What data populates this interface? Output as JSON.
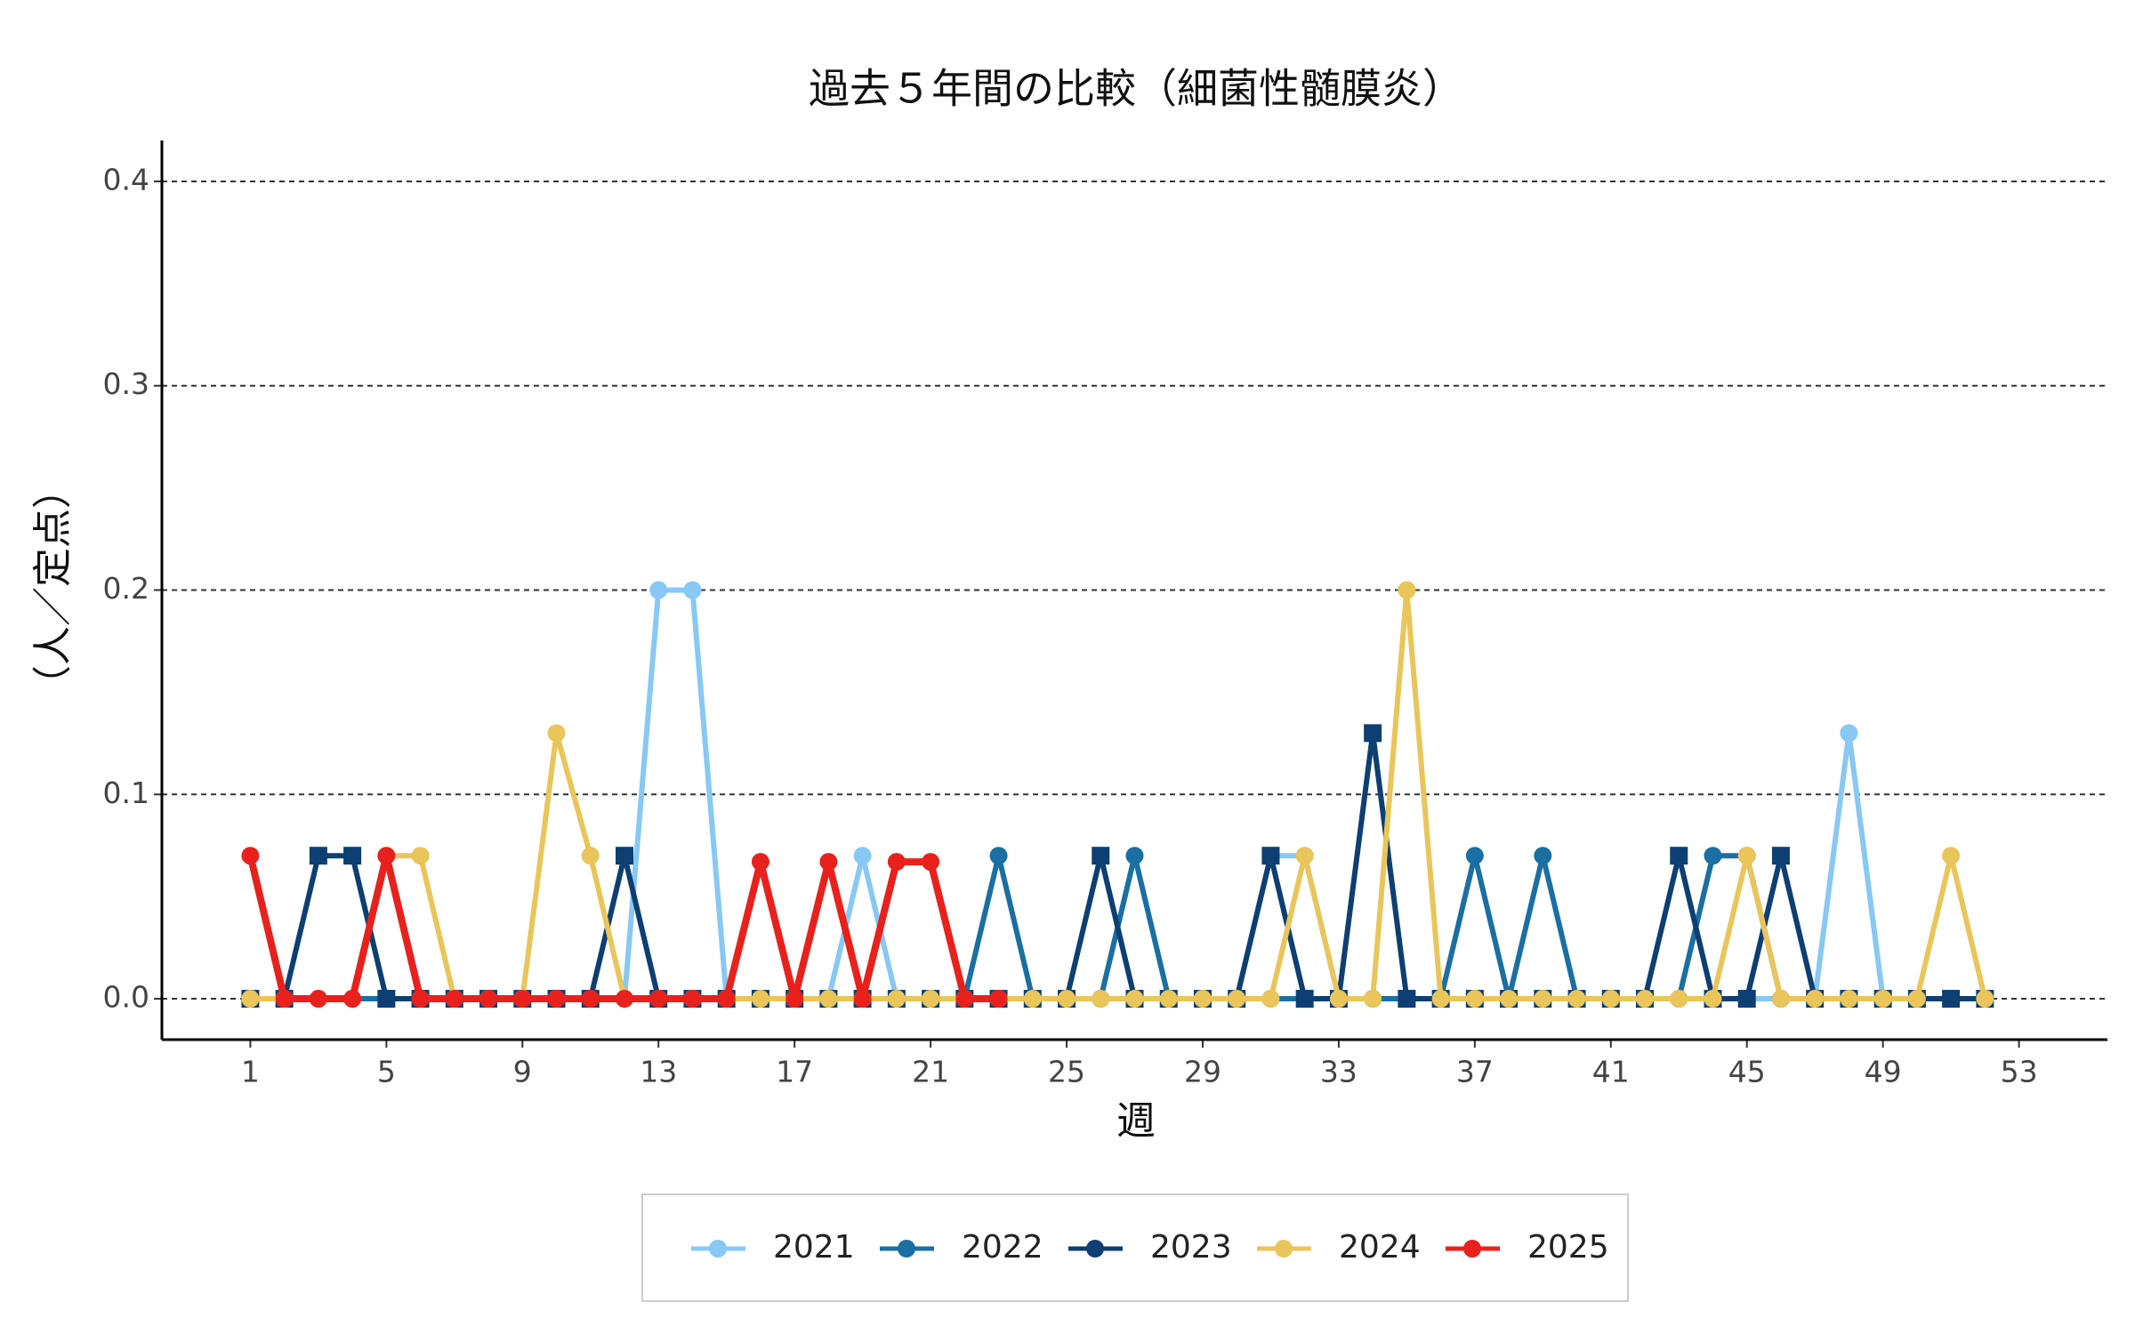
{
  "chart_data": {
    "type": "line",
    "title": "過去５年間の比較（細菌性髄膜炎）",
    "x_label": "週",
    "y_label": "（人／定点）",
    "x": [
      1,
      2,
      3,
      4,
      5,
      6,
      7,
      8,
      9,
      10,
      11,
      12,
      13,
      14,
      15,
      16,
      17,
      18,
      19,
      20,
      21,
      22,
      23,
      24,
      25,
      26,
      27,
      28,
      29,
      30,
      31,
      32,
      33,
      34,
      35,
      36,
      37,
      38,
      39,
      40,
      41,
      42,
      43,
      44,
      45,
      46,
      47,
      48,
      49,
      50,
      51,
      52
    ],
    "series": [
      {
        "name": "2021",
        "color": "#87c8f5",
        "marker": "circle",
        "values": [
          0,
          0,
          0,
          0,
          0,
          0,
          0,
          0,
          0,
          0,
          0,
          0,
          0.2,
          0.2,
          0,
          0,
          0,
          0,
          0.07,
          0,
          0,
          0,
          0,
          0,
          0,
          0,
          0,
          0,
          0,
          0,
          0.07,
          0.07,
          0,
          0,
          0,
          0,
          0,
          0,
          0,
          0,
          0,
          0,
          0,
          0,
          0,
          0,
          0,
          0.13,
          0,
          0,
          0,
          0
        ]
      },
      {
        "name": "2022",
        "color": "#1a6fa3",
        "marker": "circle",
        "values": [
          0,
          0,
          0,
          0,
          0,
          0,
          0,
          0,
          0,
          0,
          0,
          0,
          0,
          0,
          0,
          0,
          0,
          0,
          0,
          0,
          0,
          0,
          0.07,
          0,
          0,
          0,
          0.07,
          0,
          0,
          0,
          0,
          0,
          0,
          0,
          0,
          0,
          0.07,
          0,
          0.07,
          0,
          0,
          0,
          0,
          0.07,
          0.07,
          0,
          0,
          0,
          0,
          0,
          0,
          0
        ]
      },
      {
        "name": "2023",
        "color": "#0d3f73",
        "marker": "square",
        "values": [
          0,
          0,
          0.07,
          0.07,
          0,
          0,
          0,
          0,
          0,
          0,
          0,
          0.07,
          0,
          0,
          0,
          0,
          0,
          0,
          0,
          0,
          0,
          0,
          0,
          0,
          0,
          0.07,
          0,
          0,
          0,
          0,
          0.07,
          0,
          0,
          0.13,
          0,
          0,
          0,
          0,
          0,
          0,
          0,
          0,
          0.07,
          0,
          0,
          0.07,
          0,
          0,
          0,
          0,
          0,
          0
        ]
      },
      {
        "name": "2024",
        "color": "#eac55a",
        "marker": "circle",
        "values": [
          0,
          0,
          0,
          0,
          0.07,
          0.07,
          0,
          0,
          0,
          0.13,
          0.07,
          0,
          0,
          0,
          0,
          0,
          0,
          0,
          0,
          0,
          0,
          0,
          0,
          0,
          0,
          0,
          0,
          0,
          0,
          0,
          0,
          0.07,
          0,
          0,
          0.2,
          0,
          0,
          0,
          0,
          0,
          0,
          0,
          0,
          0,
          0.07,
          0,
          0,
          0,
          0,
          0,
          0.07,
          0
        ]
      },
      {
        "name": "2025",
        "color": "#e8211c",
        "marker": "circle",
        "values": [
          0.07,
          0,
          0,
          0,
          0.07,
          0,
          0,
          0,
          0,
          0,
          0,
          0,
          0,
          0,
          0,
          0.067,
          0,
          0.067,
          0,
          0.067,
          0.067,
          0,
          0,
          null,
          null,
          null,
          null,
          null,
          null,
          null,
          null,
          null,
          null,
          null,
          null,
          null,
          null,
          null,
          null,
          null,
          null,
          null,
          null,
          null,
          null,
          null,
          null,
          null,
          null,
          null,
          null,
          null
        ]
      }
    ],
    "xlim": [
      -1.6,
      55.6
    ],
    "xticks": [
      1,
      5,
      9,
      13,
      17,
      21,
      25,
      29,
      33,
      37,
      41,
      45,
      49,
      53
    ],
    "ylim": [
      -0.02,
      0.42
    ],
    "yticks": [
      {
        "value": 0,
        "label": "0.0"
      },
      0.1,
      0.2,
      0.3,
      0.4
    ],
    "grid": true,
    "legend": "bottom"
  }
}
